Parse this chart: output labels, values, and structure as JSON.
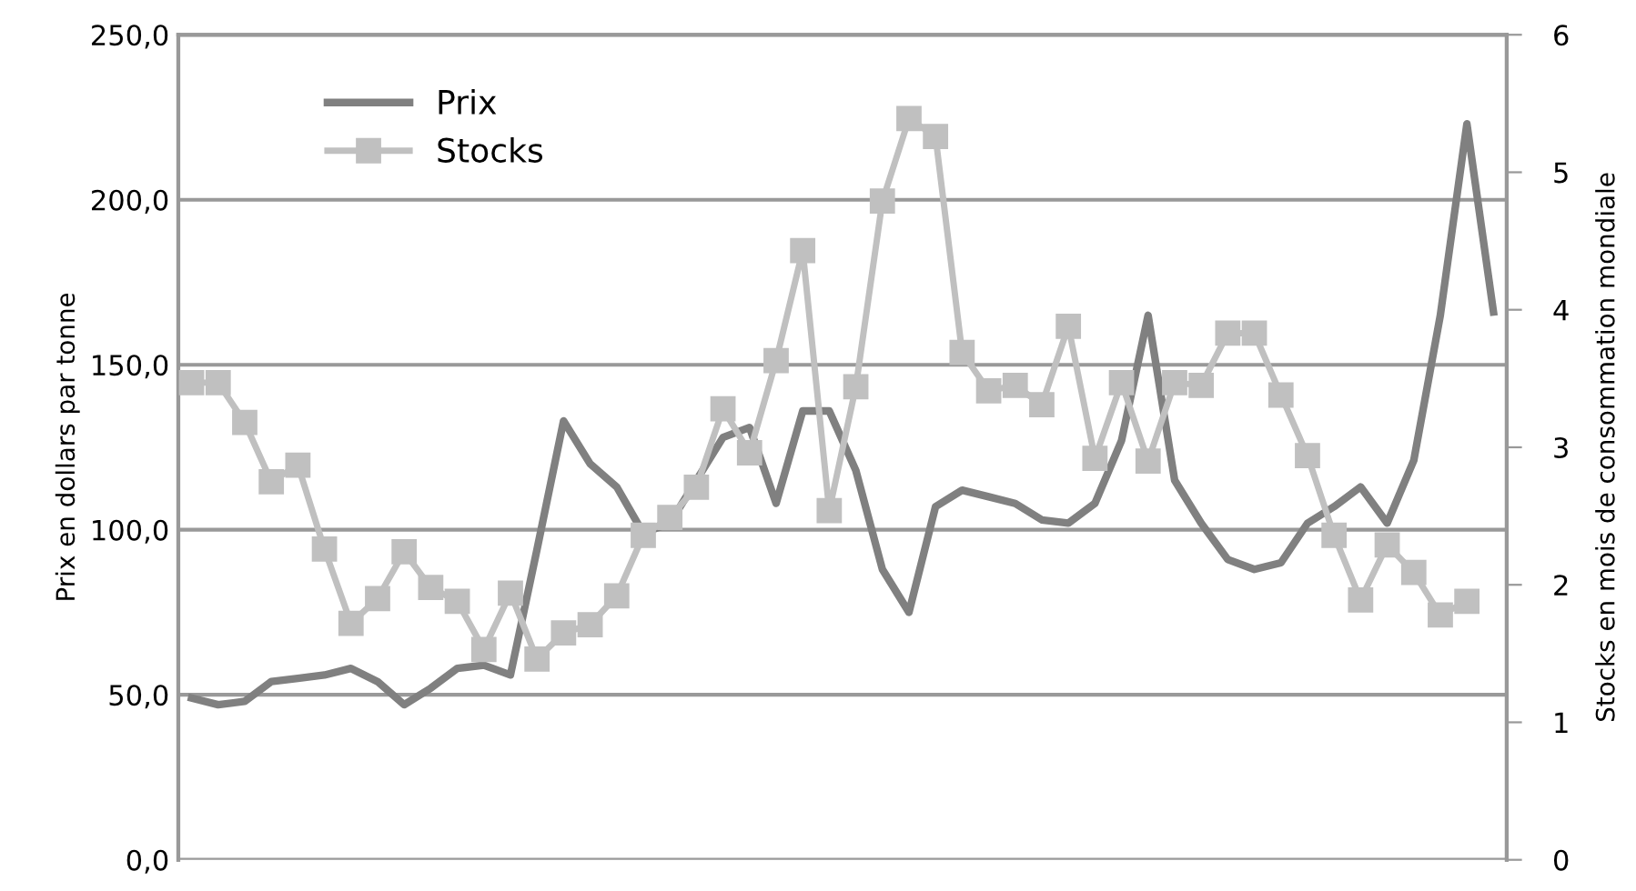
{
  "chart_data": {
    "type": "line",
    "categories": [
      null,
      null,
      null,
      null,
      null,
      null,
      null,
      null,
      null,
      null,
      null,
      null,
      null,
      null,
      null,
      null,
      null,
      null,
      null,
      null,
      null,
      null,
      null,
      null,
      null,
      null,
      null,
      null,
      null,
      null,
      null,
      null,
      null,
      null,
      null,
      null,
      null,
      null,
      null,
      null,
      null,
      null,
      null,
      null,
      null,
      null,
      null,
      null,
      null,
      null
    ],
    "series": [
      {
        "name": "Prix",
        "color": "#808080",
        "marker": "none",
        "values": [
          49,
          47,
          48,
          54,
          55,
          56,
          58,
          54,
          47,
          52,
          58,
          59,
          56,
          94,
          133,
          120,
          113,
          99,
          102,
          115,
          128,
          131,
          108,
          136,
          136,
          118,
          88,
          75,
          107,
          112,
          110,
          108,
          103,
          102,
          108,
          127,
          165,
          115,
          102,
          91,
          88,
          90,
          102,
          107,
          113,
          102,
          121,
          165,
          223,
          166
        ]
      },
      {
        "name": "Stocks",
        "color": "#c0c0c0",
        "marker": "square",
        "axis": "y2",
        "values": [
          3.47,
          3.47,
          3.18,
          2.75,
          2.87,
          2.26,
          1.72,
          1.9,
          2.24,
          1.98,
          1.88,
          1.53,
          1.94,
          1.46,
          1.65,
          1.71,
          1.92,
          2.36,
          2.49,
          2.71,
          3.28,
          2.96,
          3.63,
          4.43,
          2.54,
          3.44,
          4.79,
          5.39,
          5.26,
          3.69,
          3.41,
          3.45,
          3.31,
          3.88,
          2.92,
          3.47,
          2.9,
          3.47,
          3.45,
          3.83,
          3.83,
          3.38,
          2.94,
          2.36,
          1.89,
          2.29,
          2.09,
          1.78,
          1.88,
          null
        ]
      }
    ],
    "ylabel": "Prix en dollars par tonne",
    "y2label": "Stocks en mois de consommation mondiale",
    "ylim": [
      0,
      250
    ],
    "yticks": [
      {
        "value": 0,
        "label": "0,0"
      },
      {
        "value": 50,
        "label": "50,0"
      },
      {
        "value": 100,
        "label": "100,0"
      },
      {
        "value": 150,
        "label": "150,0"
      },
      {
        "value": 200,
        "label": "200,0"
      },
      {
        "value": 250,
        "label": "250,0"
      }
    ],
    "y2lim": [
      0,
      6
    ],
    "y2ticks": [
      0,
      1,
      2,
      3,
      4,
      5,
      6
    ],
    "tick_labels": "y",
    "grid": "y",
    "legend": "top left"
  }
}
